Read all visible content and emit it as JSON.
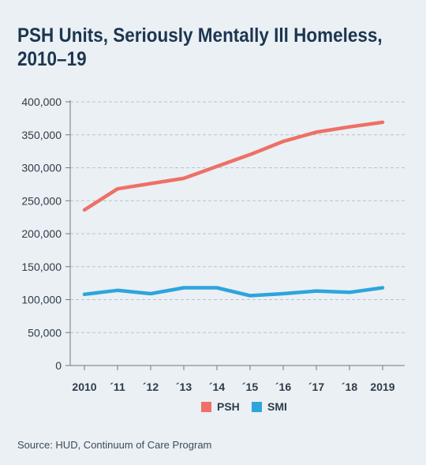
{
  "chart_data": {
    "type": "line",
    "title": "PSH Units, Seriously Mentally Ill Homeless, 2010–19",
    "x": [
      "2010",
      "´11",
      "´12",
      "´13",
      "´14",
      "´15",
      "´16",
      "´17",
      "´18",
      "2019"
    ],
    "ylim": [
      0,
      400000
    ],
    "yticks": [
      "0",
      "50,000",
      "100,000",
      "150,000",
      "200,000",
      "250,000",
      "300,000",
      "350,000",
      "400,000"
    ],
    "grid": true,
    "legend_position": "bottom-center",
    "series": [
      {
        "name": "PSH",
        "color": "#ee7066",
        "values": [
          236000,
          268000,
          276000,
          284000,
          302000,
          320000,
          340000,
          354000,
          362000,
          369000
        ]
      },
      {
        "name": "SMI",
        "color": "#2ea4dc",
        "values": [
          108000,
          114000,
          109000,
          118000,
          118000,
          106000,
          109000,
          113000,
          111000,
          118000
        ]
      }
    ]
  },
  "source": "Source: HUD, Continuum of Care Program"
}
